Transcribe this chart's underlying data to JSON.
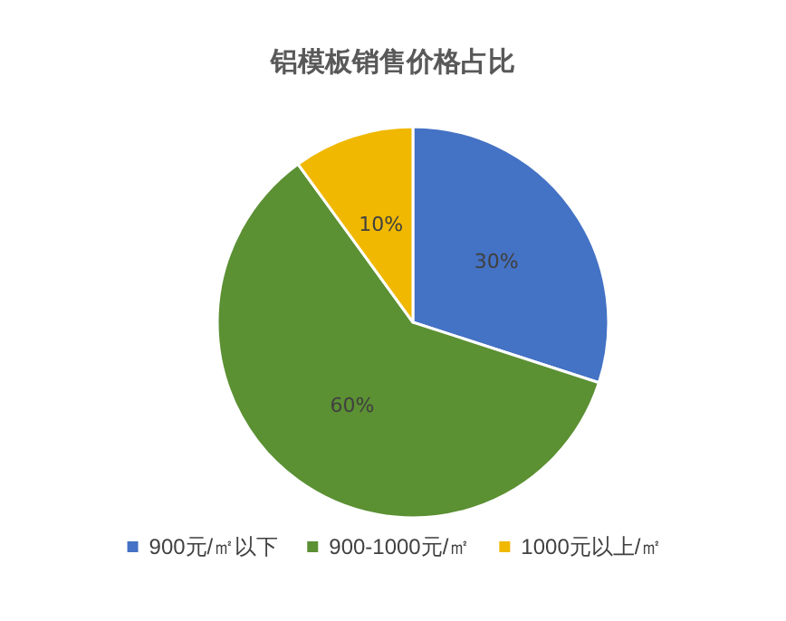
{
  "chart_data": {
    "type": "pie",
    "title": "铝模板销售价格占比",
    "categories": [
      "900元/㎡以下",
      "900-1000元/㎡",
      "1000元以上/㎡"
    ],
    "values": [
      30,
      60,
      10
    ],
    "colors": [
      "#4472c4",
      "#5b9033",
      "#f0b800"
    ],
    "value_labels": [
      "30%",
      "60%",
      "10%"
    ],
    "legend": "bottom"
  }
}
